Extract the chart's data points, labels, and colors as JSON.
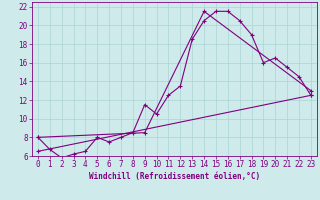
{
  "xlabel": "Windchill (Refroidissement éolien,°C)",
  "bg_color": "#ceeaea",
  "line_color": "#800080",
  "grid_color": "#aad4d4",
  "spine_color": "#800080",
  "xlim": [
    -0.5,
    23.5
  ],
  "ylim": [
    6,
    22.5
  ],
  "yticks": [
    6,
    8,
    10,
    12,
    14,
    16,
    18,
    20,
    22
  ],
  "xticks": [
    0,
    1,
    2,
    3,
    4,
    5,
    6,
    7,
    8,
    9,
    10,
    11,
    12,
    13,
    14,
    15,
    16,
    17,
    18,
    19,
    20,
    21,
    22,
    23
  ],
  "line1_x": [
    0,
    1,
    2,
    3,
    4,
    5,
    6,
    7,
    8,
    9,
    10,
    11,
    12,
    13,
    14,
    15,
    16,
    17,
    18,
    19,
    20,
    21,
    22,
    23
  ],
  "line1_y": [
    8.0,
    6.7,
    5.8,
    6.2,
    6.5,
    8.0,
    7.5,
    8.0,
    8.5,
    11.5,
    10.5,
    12.5,
    13.5,
    18.5,
    20.5,
    21.5,
    21.5,
    20.5,
    19.0,
    16.0,
    16.5,
    15.5,
    14.5,
    12.5
  ],
  "line2_x": [
    0,
    9,
    14,
    23
  ],
  "line2_y": [
    8.0,
    8.5,
    21.5,
    13.0
  ],
  "line3_x": [
    0,
    23
  ],
  "line3_y": [
    6.5,
    12.5
  ],
  "tick_fontsize": 5.5,
  "label_fontsize": 5.5
}
